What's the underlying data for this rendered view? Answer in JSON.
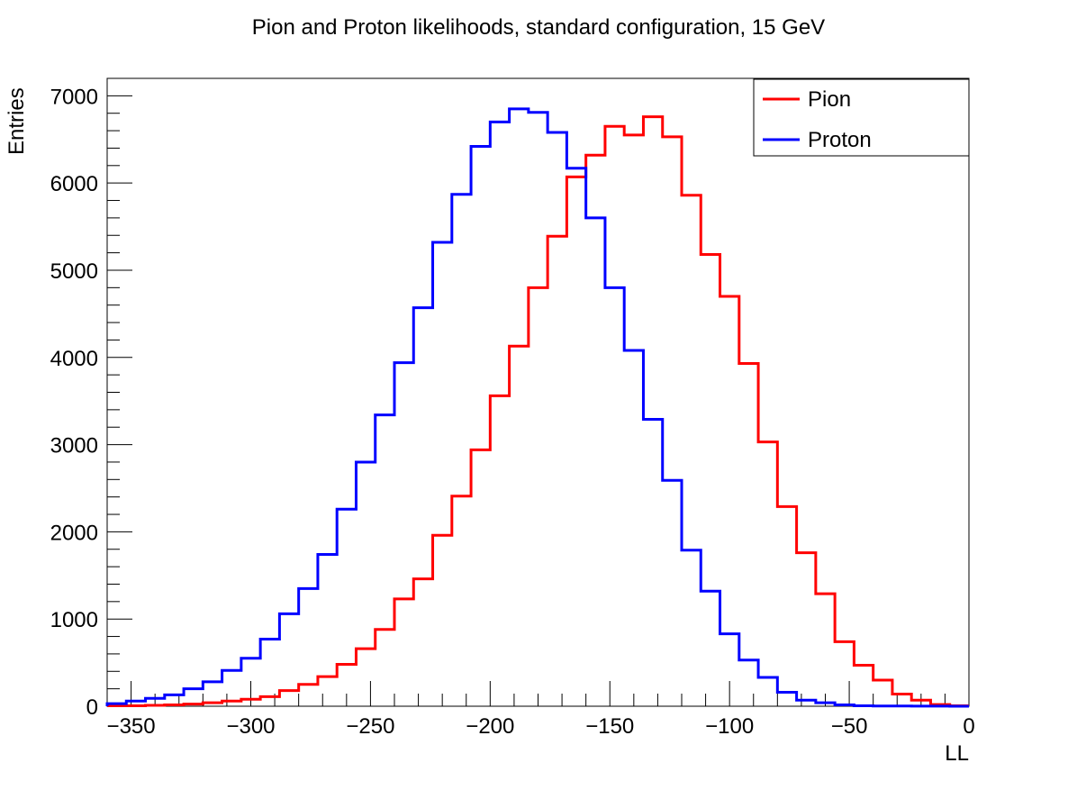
{
  "chart_data": {
    "type": "line",
    "title": "Pion and Proton likelihoods, standard configuration, 15 GeV",
    "xlabel": "LL",
    "ylabel": "Entries",
    "xlim": [
      -360,
      0
    ],
    "ylim": [
      0,
      7200
    ],
    "bin_width": 8,
    "x_ticks": [
      -350,
      -300,
      -250,
      -200,
      -150,
      -100,
      -50,
      0
    ],
    "x_tick_labels": [
      "−350",
      "−300",
      "−250",
      "−200",
      "−150",
      "−100",
      "−50",
      "0"
    ],
    "y_ticks": [
      0,
      1000,
      2000,
      3000,
      4000,
      5000,
      6000,
      7000
    ],
    "y_tick_labels": [
      "0",
      "1000",
      "2000",
      "3000",
      "4000",
      "5000",
      "6000",
      "7000"
    ],
    "legend_position": "top-right",
    "grid": false,
    "x_bin_edges": [
      -360,
      -352,
      -344,
      -336,
      -328,
      -320,
      -312,
      -304,
      -296,
      -288,
      -280,
      -272,
      -264,
      -256,
      -248,
      -240,
      -232,
      -224,
      -216,
      -208,
      -200,
      -192,
      -184,
      -176,
      -168,
      -160,
      -152,
      -144,
      -136,
      -128,
      -120,
      -112,
      -104,
      -96,
      -88,
      -80,
      -72,
      -64,
      -56,
      -48,
      -40,
      -32,
      -24,
      -16,
      -8,
      0
    ],
    "series": [
      {
        "name": "Pion",
        "color": "#ff0000",
        "values": [
          5,
          5,
          10,
          15,
          25,
          40,
          60,
          80,
          110,
          180,
          250,
          340,
          480,
          660,
          880,
          1230,
          1460,
          1960,
          2410,
          2940,
          3560,
          4130,
          4800,
          5390,
          6070,
          6320,
          6650,
          6550,
          6760,
          6530,
          5860,
          5180,
          4700,
          3930,
          3030,
          2290,
          1760,
          1290,
          740,
          470,
          300,
          140,
          70,
          20,
          5
        ]
      },
      {
        "name": "Proton",
        "color": "#0000ff",
        "values": [
          30,
          60,
          90,
          130,
          200,
          280,
          410,
          550,
          770,
          1060,
          1350,
          1740,
          2260,
          2800,
          3340,
          3940,
          4570,
          5320,
          5870,
          6420,
          6700,
          6850,
          6810,
          6580,
          6170,
          5600,
          4800,
          4080,
          3290,
          2590,
          1790,
          1320,
          830,
          530,
          330,
          160,
          70,
          40,
          15,
          5,
          3,
          2,
          1,
          1,
          0
        ]
      }
    ]
  }
}
